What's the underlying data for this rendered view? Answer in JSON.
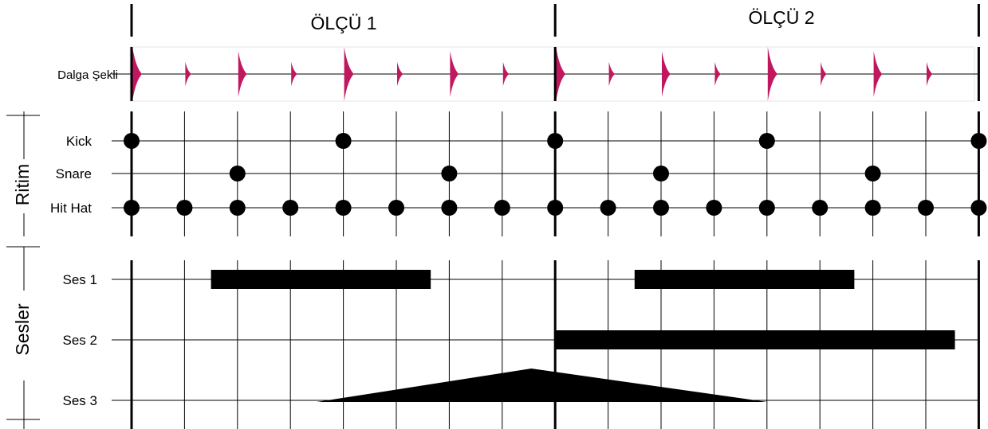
{
  "measures": [
    "ÖLÇÜ 1",
    "ÖLÇÜ 2"
  ],
  "waveform": {
    "label": "Dalga Şekli",
    "color": "#c0185f",
    "hits": [
      {
        "beat": 0,
        "amp": 1.0
      },
      {
        "beat": 1,
        "amp": 0.45
      },
      {
        "beat": 2,
        "amp": 0.85
      },
      {
        "beat": 3,
        "amp": 0.45
      },
      {
        "beat": 4,
        "amp": 1.0
      },
      {
        "beat": 5,
        "amp": 0.45
      },
      {
        "beat": 6,
        "amp": 0.85
      },
      {
        "beat": 7,
        "amp": 0.45
      },
      {
        "beat": 8,
        "amp": 1.0
      },
      {
        "beat": 9,
        "amp": 0.45
      },
      {
        "beat": 10,
        "amp": 0.85
      },
      {
        "beat": 11,
        "amp": 0.45
      },
      {
        "beat": 12,
        "amp": 1.0
      },
      {
        "beat": 13,
        "amp": 0.45
      },
      {
        "beat": 14,
        "amp": 0.85
      },
      {
        "beat": 15,
        "amp": 0.45
      }
    ]
  },
  "rhythm": {
    "section_label": "Ritim",
    "rows": [
      {
        "name": "Kick",
        "beats": [
          0,
          4,
          8,
          12,
          16
        ]
      },
      {
        "name": "Snare",
        "beats": [
          2,
          6,
          10,
          14
        ]
      },
      {
        "name": "Hit Hat",
        "beats": [
          0,
          1,
          2,
          3,
          4,
          5,
          6,
          7,
          8,
          9,
          10,
          11,
          12,
          13,
          14,
          15,
          16
        ]
      }
    ]
  },
  "sounds": {
    "section_label": "Sesler",
    "rows": [
      {
        "name": "Ses 1",
        "shape": "bar",
        "segments": [
          [
            1.5,
            5.65
          ],
          [
            9.5,
            13.65
          ]
        ]
      },
      {
        "name": "Ses 2",
        "shape": "bar",
        "segments": [
          [
            8,
            15.55
          ]
        ]
      },
      {
        "name": "Ses 3",
        "shape": "triangle",
        "segments": [
          [
            3.5,
            7.55,
            12
          ]
        ]
      }
    ]
  }
}
